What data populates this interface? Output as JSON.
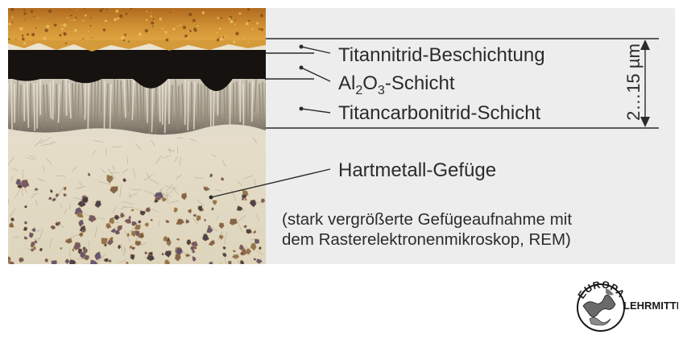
{
  "labels": {
    "coating": "Titannitrid-Beschichtung",
    "al2o3": {
      "base1": "Al",
      "sub1": "2",
      "base2": "O",
      "sub2": "3",
      "suffix": "-Schicht"
    },
    "ticn": "Titancarbonitrid-Schicht",
    "carbide": "Hartmetall-Gefüge"
  },
  "dimension": {
    "label": "2…15 µm"
  },
  "caption": {
    "line1": "(stark vergrößerte Gefügeaufnahme mit",
    "line2": "dem Rasterelektronenmikroskop, REM)"
  },
  "logo": {
    "top": "EUROPA",
    "side": "LEHRMITTEL"
  },
  "colors": {
    "panel": "#ededed",
    "text": "#2b2b2b",
    "tin_layer": "#c8822a",
    "dark_layer": "#151210",
    "ticn_layer": "#bdb5a6",
    "carbide_matrix": "#e4ddc9"
  }
}
